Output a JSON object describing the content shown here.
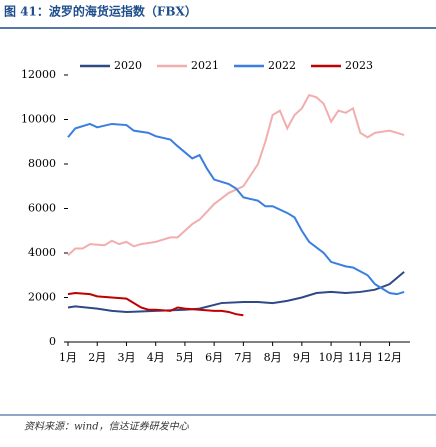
{
  "header": {
    "title": "图 41：波罗的海货运指数（FBX）"
  },
  "chart_data": {
    "type": "line",
    "xlim": [
      1,
      12.7
    ],
    "xticks": [
      {
        "value": 1,
        "label": "1月"
      },
      {
        "value": 2,
        "label": "2月"
      },
      {
        "value": 3,
        "label": "3月"
      },
      {
        "value": 4,
        "label": "4月"
      },
      {
        "value": 5,
        "label": "5月"
      },
      {
        "value": 6,
        "label": "6月"
      },
      {
        "value": 7,
        "label": "7月"
      },
      {
        "value": 8,
        "label": "8月"
      },
      {
        "value": 9,
        "label": "9月"
      },
      {
        "value": 10,
        "label": "10月"
      },
      {
        "value": 11,
        "label": "11月"
      },
      {
        "value": 12,
        "label": "12月"
      }
    ],
    "ylim": [
      0,
      12000
    ],
    "yticks": [
      0,
      2000,
      4000,
      6000,
      8000,
      10000,
      12000
    ],
    "legend": "top",
    "series": [
      {
        "name": "2020",
        "color": "#2e4a86",
        "x": [
          1,
          1.25,
          2,
          2.5,
          3,
          4,
          5,
          5.5,
          6.25,
          7,
          7.5,
          8,
          8.5,
          9,
          9.5,
          10,
          10.5,
          11,
          11.5,
          12,
          12.5
        ],
        "values": [
          1550,
          1600,
          1500,
          1400,
          1350,
          1400,
          1450,
          1500,
          1750,
          1800,
          1800,
          1750,
          1850,
          2000,
          2200,
          2250,
          2200,
          2250,
          2350,
          2600,
          3150
        ]
      },
      {
        "name": "2021",
        "color": "#f2aeae",
        "x": [
          1,
          1.25,
          1.5,
          1.75,
          2.25,
          2.5,
          2.75,
          3,
          3.25,
          3.5,
          4,
          4.5,
          4.75,
          5.25,
          5.5,
          6,
          6.5,
          7,
          7.25,
          7.5,
          7.75,
          8,
          8.25,
          8.5,
          8.75,
          9,
          9.25,
          9.5,
          9.75,
          10,
          10.25,
          10.5,
          10.75,
          11,
          11.25,
          11.5,
          12,
          12.25,
          12.5
        ],
        "values": [
          3900,
          4200,
          4200,
          4400,
          4350,
          4550,
          4400,
          4500,
          4300,
          4400,
          4500,
          4700,
          4700,
          5300,
          5500,
          6200,
          6700,
          7000,
          7500,
          8000,
          9000,
          10200,
          10400,
          9600,
          10200,
          10500,
          11100,
          11000,
          10700,
          9900,
          10400,
          10300,
          10500,
          9400,
          9200,
          9400,
          9500,
          9400,
          9300
        ]
      },
      {
        "name": "2022",
        "color": "#3a7ee2",
        "x": [
          1,
          1.25,
          1.75,
          2,
          2.5,
          3,
          3.25,
          3.75,
          4,
          4.5,
          4.75,
          5.25,
          5.5,
          5.75,
          6,
          6.5,
          6.75,
          7,
          7.5,
          7.75,
          8,
          8.5,
          8.75,
          9,
          9.25,
          9.75,
          10,
          10.5,
          10.75,
          11.25,
          11.5,
          12,
          12.25,
          12.5
        ],
        "values": [
          9200,
          9600,
          9800,
          9650,
          9800,
          9750,
          9500,
          9400,
          9250,
          9100,
          8800,
          8250,
          8400,
          7800,
          7300,
          7100,
          6900,
          6500,
          6350,
          6100,
          6100,
          5800,
          5600,
          5000,
          4500,
          4000,
          3600,
          3400,
          3350,
          3000,
          2600,
          2200,
          2150,
          2250
        ]
      },
      {
        "name": "2023",
        "color": "#c00000",
        "x": [
          1,
          1.25,
          1.75,
          2,
          2.5,
          3,
          3.5,
          3.75,
          4,
          4.5,
          4.75,
          5,
          5.5,
          6,
          6.25,
          6.5,
          6.75,
          7
        ],
        "values": [
          2150,
          2200,
          2150,
          2050,
          2000,
          1950,
          1550,
          1450,
          1450,
          1400,
          1550,
          1500,
          1450,
          1400,
          1400,
          1350,
          1250,
          1200
        ]
      }
    ]
  },
  "footer": {
    "source": "资料来源：wind，信达证券研发中心"
  }
}
